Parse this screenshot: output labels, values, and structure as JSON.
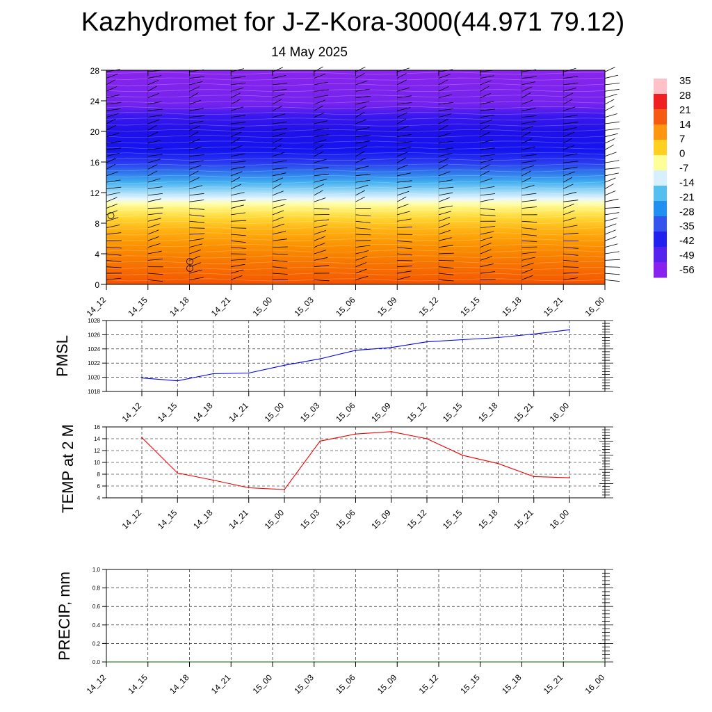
{
  "header": {
    "title": "Kazhydromet for J-Z-Kora-3000(44.971 79.12)",
    "subtitle": "14 May 2025"
  },
  "chart_data": [
    {
      "type": "heatmap",
      "title": "",
      "xlabel": "",
      "ylabel": "",
      "categories": [
        "14_12",
        "14_15",
        "14_18",
        "14_21",
        "15_00",
        "15_03",
        "15_06",
        "15_09",
        "15_12",
        "15_15",
        "15_18",
        "15_21",
        "16_00"
      ],
      "y_ticks": [
        0,
        4,
        8,
        12,
        16,
        20,
        24,
        28
      ],
      "ylim": [
        0,
        28
      ],
      "colorbar_labels": [
        "35",
        "28",
        "21",
        "14",
        "7",
        "0",
        "-7",
        "-14",
        "-21",
        "-28",
        "-35",
        "-42",
        "-49",
        "-56"
      ],
      "colorbar_colors": [
        "#ffc0c8",
        "#f02020",
        "#f65a10",
        "#ff9610",
        "#ffd020",
        "#ffff99",
        "#d6f0ff",
        "#55c0f0",
        "#2090f0",
        "#3355ee",
        "#2222f0",
        "#5522ee",
        "#8822ee"
      ],
      "wind_barbs": true
    },
    {
      "type": "line",
      "ylabel": "PMSL",
      "categories": [
        "14_12",
        "14_15",
        "14_18",
        "14_21",
        "15_00",
        "15_03",
        "15_06",
        "15_09",
        "15_12",
        "15_15",
        "15_18",
        "15_21",
        "16_00"
      ],
      "values": [
        1019.9,
        1019.5,
        1020.5,
        1020.6,
        1021.7,
        1022.6,
        1023.8,
        1024.2,
        1025.0,
        1025.3,
        1025.6,
        1026.1,
        1026.7
      ],
      "ylim": [
        1018,
        1028
      ],
      "y_ticks": [
        1018,
        1020,
        1022,
        1024,
        1026,
        1028
      ],
      "color": "#0000ee",
      "grid": true
    },
    {
      "type": "line",
      "ylabel": "TEMP at 2 M",
      "categories": [
        "14_12",
        "14_15",
        "14_18",
        "14_21",
        "15_00",
        "15_03",
        "15_06",
        "15_09",
        "15_12",
        "15_15",
        "15_18",
        "15_21",
        "16_00"
      ],
      "values": [
        14.2,
        8.2,
        7.0,
        5.7,
        5.4,
        13.6,
        14.8,
        15.2,
        14.0,
        11.2,
        9.8,
        7.6,
        7.4
      ],
      "ylim": [
        4,
        16
      ],
      "y_ticks": [
        4,
        6,
        8,
        10,
        12,
        14,
        16
      ],
      "color": "#ee0000",
      "grid": true
    },
    {
      "type": "line",
      "ylabel": "PRECIP, mm",
      "categories": [
        "14_12",
        "14_15",
        "14_18",
        "14_21",
        "15_00",
        "15_03",
        "15_06",
        "15_09",
        "15_12",
        "15_15",
        "15_18",
        "15_21",
        "16_00"
      ],
      "values": [
        0,
        0,
        0,
        0,
        0,
        0,
        0,
        0,
        0,
        0,
        0,
        0,
        0
      ],
      "ylim": [
        0,
        1
      ],
      "y_ticks": [
        "0.0",
        "0.2",
        "0.4",
        "0.6",
        "0.8",
        "1.0"
      ],
      "color": "#006600",
      "grid": true
    }
  ]
}
